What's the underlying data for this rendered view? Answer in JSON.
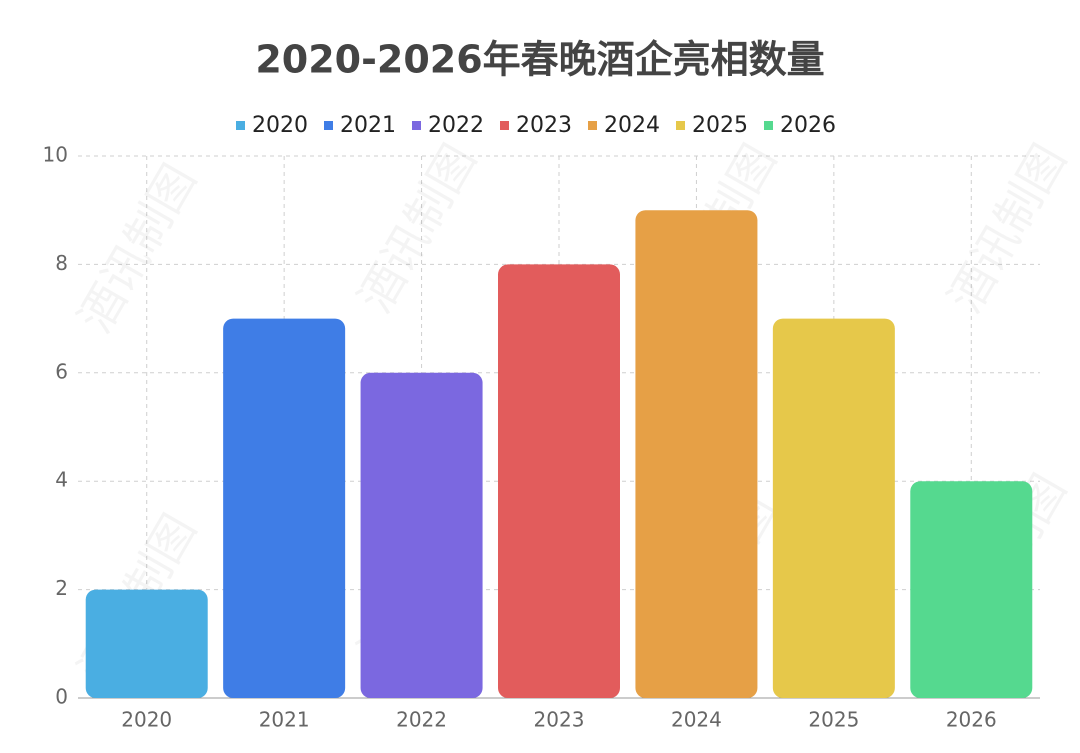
{
  "chart_data": {
    "type": "bar",
    "title": "2020-2026年春晚酒企亮相数量",
    "categories": [
      "2020",
      "2021",
      "2022",
      "2023",
      "2024",
      "2025",
      "2026"
    ],
    "values": [
      2,
      7,
      6,
      8,
      9,
      7,
      4
    ],
    "colors": [
      "#4aaee2",
      "#3f7de6",
      "#7b68e0",
      "#e25c5c",
      "#e6a046",
      "#e6c84a",
      "#55d98f"
    ],
    "ylim": [
      0,
      10
    ],
    "yticks": [
      0,
      2,
      4,
      6,
      8,
      10
    ],
    "grid": true,
    "watermark": "酒讯制图"
  }
}
